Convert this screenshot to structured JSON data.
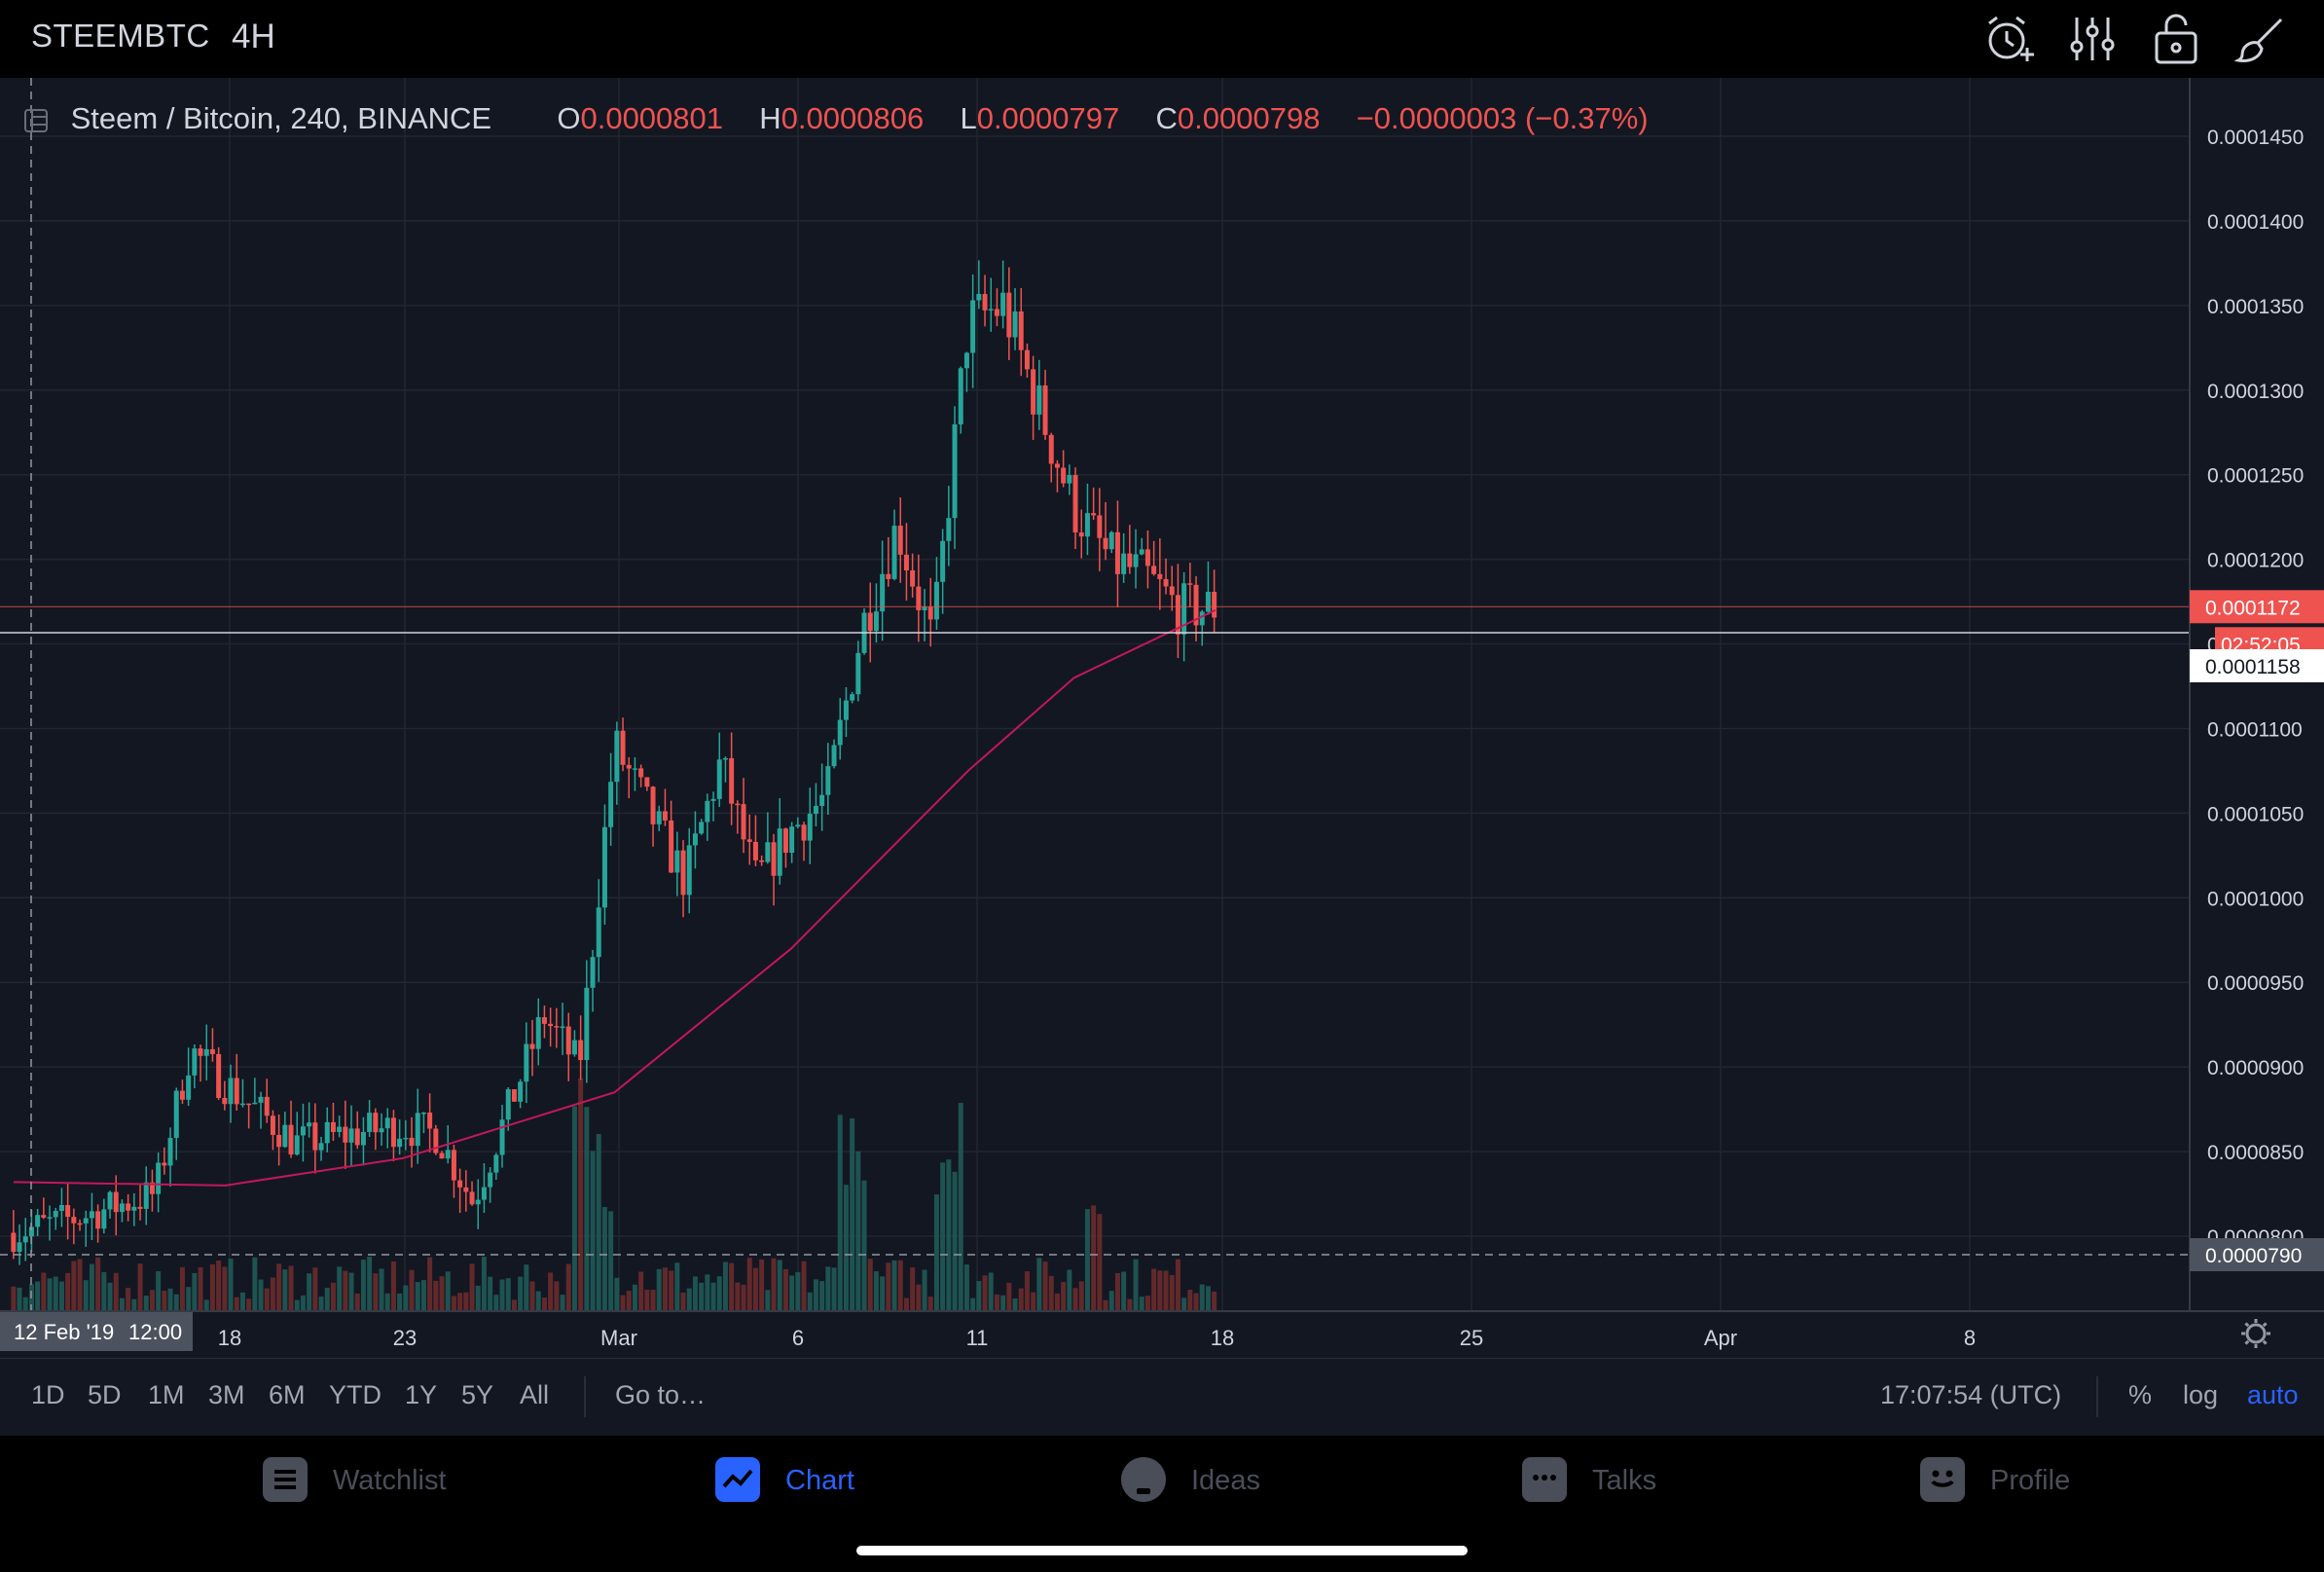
{
  "header": {
    "symbol": "STEEMBTC",
    "timeframe": "4H",
    "icons": [
      "alarm-add-icon",
      "indicators-icon",
      "unlock-icon",
      "drawing-brush-icon"
    ]
  },
  "legend": {
    "title": "Steem / Bitcoin, 240, BINANCE",
    "open_key": "O",
    "open": "0.0000801",
    "high_key": "H",
    "high": "0.0000806",
    "low_key": "L",
    "low": "0.0000797",
    "close_key": "C",
    "close": "0.0000798",
    "change": "−0.0000003 (−0.37%)"
  },
  "price_axis": {
    "ticks": [
      "0.0001450",
      "0.0001400",
      "0.0001350",
      "0.0001300",
      "0.0001250",
      "0.0001200",
      "0.0001150",
      "0.0001100",
      "0.0001050",
      "0.0001000",
      "0.0000950",
      "0.0000900",
      "0.0000850",
      "0.0000800"
    ],
    "last_price_label": "0.0001172",
    "countdown": "02:52:05",
    "crosshair_price": "0.0001158",
    "crosshair_low_price": "0.0000790"
  },
  "time_axis": {
    "labels": [
      "18",
      "23",
      "Mar",
      "6",
      "11",
      "18",
      "25",
      "Apr",
      "8"
    ],
    "crosshair_date": "12 Feb '19",
    "crosshair_time": "12:00"
  },
  "range_bar": {
    "ranges": [
      "1D",
      "5D",
      "1M",
      "3M",
      "6M",
      "YTD",
      "1Y",
      "5Y",
      "All"
    ],
    "goto": "Go to…",
    "clock": "17:07:54 (UTC)",
    "percent": "%",
    "log": "log",
    "auto": "auto"
  },
  "tabs": [
    {
      "label": "Watchlist",
      "icon": "list-icon"
    },
    {
      "label": "Chart",
      "icon": "chart-icon"
    },
    {
      "label": "Ideas",
      "icon": "lightbulb-icon"
    },
    {
      "label": "Talks",
      "icon": "chat-icon"
    },
    {
      "label": "Profile",
      "icon": "profile-icon"
    }
  ],
  "colors": {
    "up": "#26a69a",
    "down": "#ef5350",
    "ma": "#c2185b",
    "accent": "#2962ff",
    "background": "#131722"
  },
  "chart_data": {
    "type": "candlestick",
    "title": "Steem / Bitcoin, 240, BINANCE",
    "ylim": [
      7.75e-05,
      0.0001455
    ],
    "x_labels": [
      "18",
      "23",
      "Mar",
      "6",
      "11",
      "18",
      "25",
      "Apr",
      "8"
    ],
    "close_path": [
      {
        "date": "2019-02-12",
        "close": 8.02e-05
      },
      {
        "date": "2019-02-14",
        "close": 8.12e-05
      },
      {
        "date": "2019-02-16",
        "close": 8.25e-05
      },
      {
        "date": "2019-02-17",
        "close": 9.1e-05
      },
      {
        "date": "2019-02-18",
        "close": 8.9e-05
      },
      {
        "date": "2019-02-20",
        "close": 8.55e-05
      },
      {
        "date": "2019-02-22",
        "close": 8.62e-05
      },
      {
        "date": "2019-02-23",
        "close": 8.65e-05
      },
      {
        "date": "2019-02-24",
        "close": 8.6e-05
      },
      {
        "date": "2019-02-25",
        "close": 8.2e-05
      },
      {
        "date": "2019-02-27",
        "close": 9.3e-05
      },
      {
        "date": "2019-02-28",
        "close": 9e-05
      },
      {
        "date": "2019-03-01",
        "close": 0.000109
      },
      {
        "date": "2019-03-03",
        "close": 0.000101
      },
      {
        "date": "2019-03-04",
        "close": 0.000108
      },
      {
        "date": "2019-03-05",
        "close": 0.000101
      },
      {
        "date": "2019-03-06",
        "close": 0.000104
      },
      {
        "date": "2019-03-07",
        "close": 0.000106
      },
      {
        "date": "2019-03-08",
        "close": 0.000116
      },
      {
        "date": "2019-03-09",
        "close": 0.000122
      },
      {
        "date": "2019-03-10",
        "close": 0.000115
      },
      {
        "date": "2019-03-11",
        "close": 0.000134
      },
      {
        "date": "2019-03-12",
        "close": 0.000135
      },
      {
        "date": "2019-03-13",
        "close": 0.000129
      },
      {
        "date": "2019-03-14",
        "close": 0.000123
      },
      {
        "date": "2019-03-15",
        "close": 0.00012
      },
      {
        "date": "2019-03-16",
        "close": 0.000119
      },
      {
        "date": "2019-03-17",
        "close": 0.000117
      },
      {
        "date": "2019-03-18",
        "close": 0.0001172
      }
    ],
    "moving_average": [
      {
        "date": "2019-02-12",
        "value": 8.32e-05
      },
      {
        "date": "2019-02-18",
        "value": 8.3e-05
      },
      {
        "date": "2019-02-23",
        "value": 8.46e-05
      },
      {
        "date": "2019-03-01",
        "value": 8.85e-05
      },
      {
        "date": "2019-03-06",
        "value": 9.7e-05
      },
      {
        "date": "2019-03-11",
        "value": 0.0001075
      },
      {
        "date": "2019-03-14",
        "value": 0.000113
      },
      {
        "date": "2019-03-18",
        "value": 0.000117
      }
    ],
    "last_price": 0.0001172,
    "volume_notes": "volume histogram at chart bottom, spikes near Feb 27, Mar 8 and Mar 10"
  }
}
